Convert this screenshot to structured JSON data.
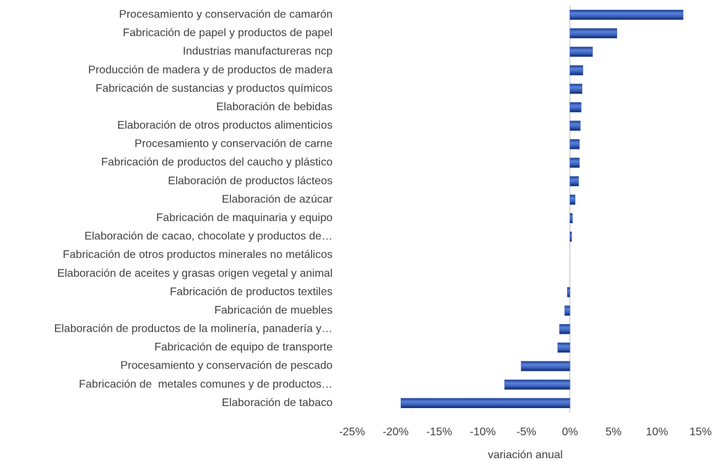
{
  "chart_data": {
    "type": "hbar",
    "x_label": "variación anual",
    "categories": [
      "Procesamiento y conservación de camarón",
      "Fabricación de papel y productos de papel",
      "Industrias manufactureras ncp",
      "Producción de madera y de productos de madera",
      "Fabricación de sustancias y productos químicos",
      "Elaboración de bebidas",
      "Elaboración de otros productos alimenticios",
      "Procesamiento y conservación de carne",
      "Fabricación de productos del caucho y plástico",
      "Elaboración de productos lácteos",
      "Elaboración de azúcar",
      "Fabricación de maquinaria y equipo",
      "Elaboración de cacao, chocolate y productos de…",
      "Fabricación de otros productos minerales no metálicos",
      "Elaboración de aceites y grasas origen vegetal y animal",
      "Fabricación de productos textiles",
      "Fabricación de muebles",
      "Elaboración de productos de la molinería, panadería y…",
      "Fabricación de equipo de transporte",
      "Procesamiento y conservación de pescado",
      "Fabricación de  metales comunes y de productos…",
      "Elaboración de tabaco"
    ],
    "values": [
      13.0,
      5.4,
      2.6,
      1.5,
      1.4,
      1.3,
      1.2,
      1.1,
      1.1,
      1.0,
      0.6,
      0.3,
      0.2,
      0,
      0,
      -0.3,
      -0.6,
      -1.2,
      -1.4,
      -5.6,
      -7.5,
      -19.4
    ],
    "color": "#3a62c0",
    "xlim": [
      -25,
      15
    ],
    "xticks": [
      {
        "value": -25,
        "label": "-25%"
      },
      {
        "value": -20,
        "label": "-20%"
      },
      {
        "value": -15,
        "label": "-15%"
      },
      {
        "value": -10,
        "label": "-10%"
      },
      {
        "value": -5,
        "label": "-5%"
      },
      {
        "value": 0,
        "label": "0%"
      },
      {
        "value": 5,
        "label": "5%"
      },
      {
        "value": 10,
        "label": "10%"
      },
      {
        "value": 15,
        "label": "15%"
      }
    ]
  }
}
